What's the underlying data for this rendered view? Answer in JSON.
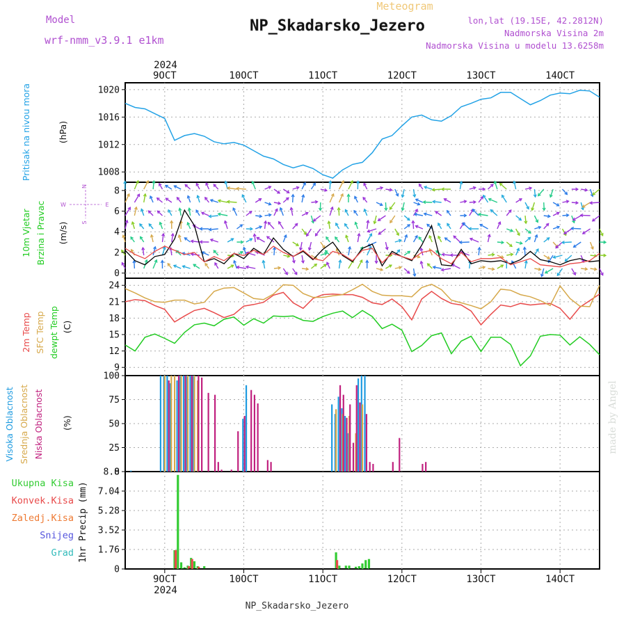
{
  "header": {
    "title_small": "Meteogram",
    "station": "NP_Skadarsko_Jezero",
    "model_label": "Model",
    "model_name": "wrf-nmm_v3.9.1 e1km",
    "lonlat": "lon,lat (19.15E, 42.2812N)",
    "elevation": "Nadmorska Visina 2m",
    "model_elevation": "Nadmorska Visina u modelu 13.6258m",
    "footer_station": "NP_Skadarsko_Jezero",
    "credit": "made by Angel"
  },
  "colors": {
    "pressure": "#22a2e6",
    "temp": "#e84a4a",
    "sfc": "#d6a84a",
    "dew": "#22cc22",
    "high_cloud": "#1e9be0",
    "mid_cloud": "#d6a84a",
    "low_cloud": "#c0207e",
    "total_precip": "#33cc33",
    "conv_precip": "#e84a4a",
    "frozen": "#ee7a33",
    "snow": "#5555dd",
    "graupel": "#33bbbb",
    "wind_purple": "#9a32d8",
    "wind_blue": "#2a7be8"
  },
  "time_axis": {
    "year": "2024",
    "tick_labels": [
      "9OCT",
      "10OCT",
      "11OCT",
      "12OCT",
      "13OCT",
      "14OCT"
    ],
    "start": "2024-10-08T12:00",
    "end": "2024-10-14T12:00"
  },
  "chart_data": [
    {
      "type": "line",
      "panel": "pressure",
      "ylabel": "Pritisak na nivou mora",
      "unit": "(hPa)",
      "yticks": [
        1008,
        1012,
        1016,
        1020
      ],
      "ylim": [
        1006.5,
        1021
      ],
      "series": [
        {
          "name": "Pritisak na nivou mora",
          "color_key": "pressure",
          "x": [
            0,
            3,
            6,
            9,
            12,
            15,
            18,
            21,
            24,
            27,
            30,
            33,
            36,
            39,
            42,
            45,
            48,
            51,
            54,
            57,
            60,
            63,
            66,
            69,
            72,
            75,
            78,
            81,
            84,
            87,
            90,
            93,
            96,
            99,
            102,
            105,
            108,
            111,
            114,
            117,
            120,
            123,
            126,
            129,
            132,
            135,
            138,
            141,
            144
          ],
          "values": [
            1018,
            1017.4,
            1017.2,
            1016.5,
            1015.8,
            1012.6,
            1013.3,
            1013.6,
            1013.2,
            1012.4,
            1012.1,
            1012.3,
            1011.9,
            1011.1,
            1010.3,
            1009.9,
            1009.1,
            1008.6,
            1009,
            1008.5,
            1007.6,
            1007.1,
            1008.3,
            1009.1,
            1009.4,
            1010.8,
            1012.8,
            1013.3,
            1014.7,
            1016,
            1016.3,
            1015.6,
            1015.4,
            1016.2,
            1017.5,
            1018,
            1018.6,
            1018.8,
            1019.6,
            1019.6,
            1018.7,
            1017.8,
            1018.4,
            1019.2,
            1019.5,
            1019.4,
            1019.9,
            1019.8,
            1018.9
          ]
        }
      ]
    },
    {
      "type": "line",
      "panel": "wind",
      "ylabel": [
        "10m Vjetar",
        "Brzina i Pravac"
      ],
      "unit": "(m/s)",
      "compass": {
        "w": "W",
        "e": "E",
        "n": "N",
        "s": "S"
      },
      "yticks": [
        0,
        2,
        4,
        6,
        8
      ],
      "ylim": [
        -0.5,
        8.8
      ],
      "series": [
        {
          "name": "10m speed",
          "color": "#000000",
          "x": [
            0,
            3,
            6,
            9,
            12,
            15,
            18,
            21,
            24,
            27,
            30,
            33,
            36,
            39,
            42,
            45,
            48,
            51,
            54,
            57,
            60,
            63,
            66,
            69,
            72,
            75,
            78,
            81,
            84,
            87,
            90,
            93,
            96,
            99,
            102,
            105,
            108,
            111,
            114,
            117,
            120,
            123,
            126,
            129,
            132,
            135,
            138,
            141,
            144
          ],
          "values": [
            2.2,
            1.2,
            0.8,
            1.6,
            1.8,
            3.3,
            6.1,
            4.6,
            1.1,
            1.4,
            0.9,
            1.9,
            1.4,
            2.4,
            1.8,
            3.4,
            2.3,
            1.6,
            2.1,
            1.3,
            2.3,
            3,
            1.7,
            1.1,
            2.4,
            2.8,
            0.7,
            2.1,
            1.6,
            1.2,
            2.7,
            4.6,
            0.8,
            0.7,
            2.3,
            0.9,
            1.2,
            1.1,
            1.2,
            0.9,
            1.3,
            2.1,
            1.3,
            1.1,
            0.8,
            1.2,
            1.4,
            1.1,
            1.2
          ]
        },
        {
          "name": "gust",
          "color": "#e84a4a",
          "x": [
            0,
            3,
            6,
            9,
            12,
            15,
            18,
            21,
            24,
            27,
            30,
            33,
            36,
            39,
            42,
            45,
            48,
            51,
            54,
            57,
            60,
            63,
            66,
            69,
            72,
            75,
            78,
            81,
            84,
            87,
            90,
            93,
            96,
            99,
            102,
            105,
            108,
            111,
            114,
            117,
            120,
            123,
            126,
            129,
            132,
            135,
            138,
            141,
            144
          ],
          "values": [
            2.4,
            1.8,
            1.4,
            2.1,
            2.6,
            2.2,
            1.8,
            2,
            1.1,
            1.6,
            1.2,
            1.9,
            1.7,
            2.2,
            1.8,
            2.6,
            2,
            1.6,
            2.2,
            1.4,
            1.2,
            2.1,
            1.8,
            1.2,
            2.2,
            2.4,
            1,
            1.9,
            1.6,
            1.3,
            2,
            2.2,
            1.4,
            0.9,
            2,
            1.1,
            1.4,
            1.4,
            1.5,
            0.8,
            1.1,
            1.4,
            0.8,
            0.7,
            0.6,
            0.9,
            1,
            1.2,
            1.9
          ]
        }
      ]
    },
    {
      "type": "line",
      "panel": "temperature",
      "ylabel": [
        "2m Temp",
        "SFC Temp",
        "dewpt Temp"
      ],
      "unit": "(C)",
      "yticks": [
        9,
        12,
        15,
        18,
        21,
        24
      ],
      "ylim": [
        7.5,
        25.3
      ],
      "series": [
        {
          "name": "2m Temp",
          "color_key": "temp",
          "x": [
            0,
            3,
            6,
            9,
            12,
            15,
            18,
            21,
            24,
            27,
            30,
            33,
            36,
            39,
            42,
            45,
            48,
            51,
            54,
            57,
            60,
            63,
            66,
            69,
            72,
            75,
            78,
            81,
            84,
            87,
            90,
            93,
            96,
            99,
            102,
            105,
            108,
            111,
            114,
            117,
            120,
            123,
            126,
            129,
            132,
            135,
            138,
            141,
            144
          ],
          "values": [
            21,
            21.4,
            21.2,
            20.3,
            19.6,
            17.3,
            18.4,
            19.4,
            19.8,
            19,
            18.1,
            18.7,
            20.2,
            20.5,
            20.9,
            22.2,
            22.7,
            20.8,
            19.8,
            21.6,
            22.3,
            22.4,
            22.3,
            22.3,
            21.8,
            20.8,
            20.5,
            21.5,
            20.1,
            17.7,
            21.5,
            22.9,
            21.6,
            20.7,
            20.4,
            19.3,
            16.8,
            18.7,
            20.4,
            20.1,
            20.7,
            20.4,
            20.6,
            20.7,
            19.8,
            17.8,
            20,
            21.2,
            22.4
          ]
        },
        {
          "name": "SFC Temp",
          "color_key": "sfc",
          "x": [
            0,
            3,
            6,
            9,
            12,
            15,
            18,
            21,
            24,
            27,
            30,
            33,
            36,
            39,
            42,
            45,
            48,
            51,
            54,
            57,
            60,
            63,
            66,
            69,
            72,
            75,
            78,
            81,
            84,
            87,
            90,
            93,
            96,
            99,
            102,
            105,
            108,
            111,
            114,
            117,
            120,
            123,
            126,
            129,
            132,
            135,
            138,
            141,
            144
          ],
          "values": [
            23.4,
            22.6,
            21.7,
            21,
            20.9,
            21.3,
            21.3,
            20.6,
            20.9,
            22.9,
            23.5,
            23.6,
            22.6,
            21.6,
            21.4,
            22.4,
            24.1,
            24,
            22.5,
            21.8,
            21.8,
            22.1,
            22.3,
            23.2,
            24.2,
            22.9,
            22.2,
            22.1,
            22.1,
            21.9,
            23.6,
            24.2,
            23.2,
            21.3,
            20.8,
            20.3,
            19.7,
            21,
            23.3,
            23.1,
            22.3,
            21.9,
            21.2,
            20.3,
            23.9,
            21.6,
            20.2,
            20.1,
            24
          ]
        },
        {
          "name": "dewpt Temp",
          "color_key": "dew",
          "x": [
            0,
            3,
            6,
            9,
            12,
            15,
            18,
            21,
            24,
            27,
            30,
            33,
            36,
            39,
            42,
            45,
            48,
            51,
            54,
            57,
            60,
            63,
            66,
            69,
            72,
            75,
            78,
            81,
            84,
            87,
            90,
            93,
            96,
            99,
            102,
            105,
            108,
            111,
            114,
            117,
            120,
            123,
            126,
            129,
            132,
            135,
            138,
            141,
            144
          ],
          "values": [
            13.1,
            12,
            14.5,
            15.1,
            14.3,
            13.4,
            15.4,
            16.8,
            17.1,
            16.6,
            17.8,
            18.2,
            16.7,
            17.9,
            17.1,
            18.4,
            18.3,
            18.4,
            17.6,
            17.4,
            18.3,
            18.9,
            19.3,
            18.1,
            19.4,
            18.3,
            16.1,
            16.9,
            15.8,
            11.9,
            13,
            14.8,
            15.3,
            11.5,
            13.8,
            14.7,
            11.9,
            14.5,
            14.5,
            13.2,
            9.3,
            11.1,
            14.7,
            15,
            14.9,
            13.1,
            14.6,
            13.2,
            11.3
          ]
        }
      ]
    },
    {
      "type": "bar",
      "panel": "clouds",
      "ylabel": [
        "Visoka Oblacnost",
        "Srednja Oblacnost",
        "Niska Oblacnost"
      ],
      "unit": "(%)",
      "yticks": [
        0,
        25,
        50,
        75,
        100
      ],
      "ylim": [
        0,
        100
      ],
      "series": [
        {
          "name": "Visoka Oblacnost",
          "color_key": "high_cloud",
          "x": [
            2,
            11,
            12,
            13,
            14,
            16,
            17,
            18,
            19,
            20,
            21,
            36,
            37,
            63,
            64,
            65,
            66,
            67,
            68,
            71,
            72,
            73
          ],
          "values": [
            1,
            100,
            100,
            100,
            92,
            95,
            100,
            100,
            100,
            100,
            100,
            55,
            90,
            70,
            60,
            78,
            66,
            58,
            40,
            97,
            100,
            100
          ]
        },
        {
          "name": "Srednja Oblacnost",
          "color_key": "mid_cloud",
          "x": [
            12,
            14,
            15,
            17,
            19,
            21,
            22,
            64,
            66,
            68,
            70,
            72
          ],
          "values": [
            100,
            100,
            100,
            100,
            100,
            100,
            95,
            65,
            60,
            58,
            40,
            70
          ]
        },
        {
          "name": "Niska Oblacnost",
          "color_key": "low_cloud",
          "x": [
            13,
            16,
            18,
            20,
            22,
            23,
            25,
            27,
            28,
            29,
            32,
            34,
            36,
            38,
            39,
            40,
            43,
            44,
            65,
            66,
            67,
            68,
            69,
            70,
            71,
            73,
            74,
            75,
            81,
            83,
            90,
            91
          ],
          "values": [
            95,
            100,
            100,
            100,
            100,
            98,
            82,
            80,
            10,
            2,
            2,
            42,
            58,
            85,
            80,
            71,
            12,
            10,
            90,
            80,
            56,
            70,
            30,
            90,
            72,
            60,
            10,
            8,
            10,
            35,
            8,
            10
          ]
        }
      ]
    },
    {
      "type": "bar",
      "panel": "precip",
      "ylabel": "1hr Precip",
      "unit": "(mm)",
      "legend": [
        "Ukupna Kisa",
        "Konvek.Kisa",
        "Zaledj.Kisa",
        "Snijeg",
        "Grad"
      ],
      "yticks": [
        0,
        1.76,
        3.52,
        5.28,
        7.04,
        8.8
      ],
      "ylim": [
        0,
        8.8
      ],
      "series": [
        {
          "name": "Ukupna Kisa",
          "color_key": "total_precip",
          "x": [
            15,
            16,
            17,
            18,
            19,
            20,
            21,
            22,
            24,
            64,
            65,
            67,
            68,
            70,
            71,
            72,
            73,
            74
          ],
          "values": [
            1.7,
            8.5,
            0.6,
            0.15,
            0.3,
            1,
            0.7,
            0.25,
            0.25,
            1.5,
            0.3,
            0.3,
            0.3,
            0.2,
            0.25,
            0.5,
            0.8,
            0.9
          ]
        },
        {
          "name": "Konvek.Kisa",
          "color_key": "conv_precip",
          "x": [
            15,
            19,
            20,
            22,
            64
          ],
          "values": [
            1.7,
            0.25,
            0.9,
            0.2,
            0.8
          ]
        }
      ]
    }
  ]
}
